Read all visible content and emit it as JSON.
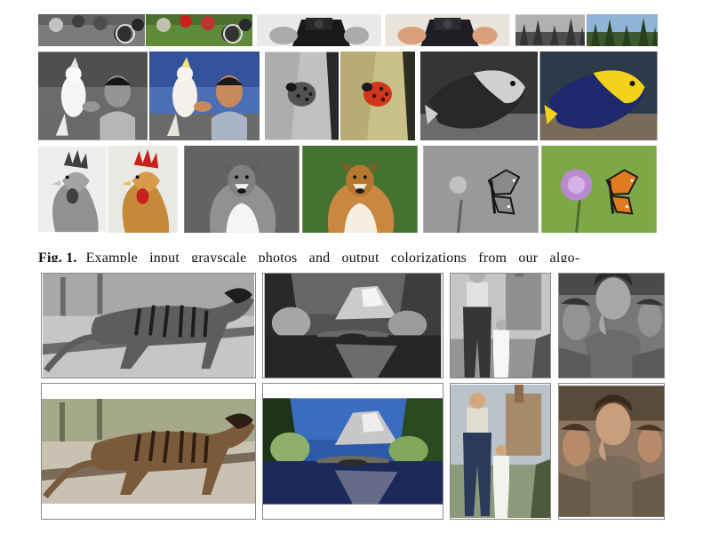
{
  "caption": {
    "label": "Fig. 1.",
    "text": "Example input grayscale photos and output colorizations from our algo-"
  },
  "tiles": {
    "balls": {
      "subject": "croquet balls on grass"
    },
    "camera": {
      "subject": "person holding a camera"
    },
    "forest": {
      "subject": "forest at dusk"
    },
    "boy_cockatoo": {
      "subject": "boy with a cockatoo"
    },
    "ladybug": {
      "subject": "ladybug on a leaf"
    },
    "fish": {
      "subject": "yellow and blue angelfish"
    },
    "rooster": {
      "subject": "rooster"
    },
    "dog": {
      "subject": "collie dog"
    },
    "butterfly": {
      "subject": "monarch butterfly on a thistle"
    },
    "thylacine": {
      "subject": "thylacine"
    },
    "yosemite": {
      "subject": "river with mountain reflection"
    },
    "man_child": {
      "subject": "man and child"
    },
    "migrant_mother": {
      "subject": "mother with children"
    }
  },
  "colors": {
    "grass": "#5f8a3a",
    "sky": "#7aa7d8",
    "rooster_red": "#c8201b",
    "fish_yellow": "#f2d31a",
    "fish_blue": "#1f2a6e",
    "butterfly_orange": "#e07a1c",
    "ladybug_red": "#d1351c",
    "thylacine_brown": "#7a5a3a"
  }
}
